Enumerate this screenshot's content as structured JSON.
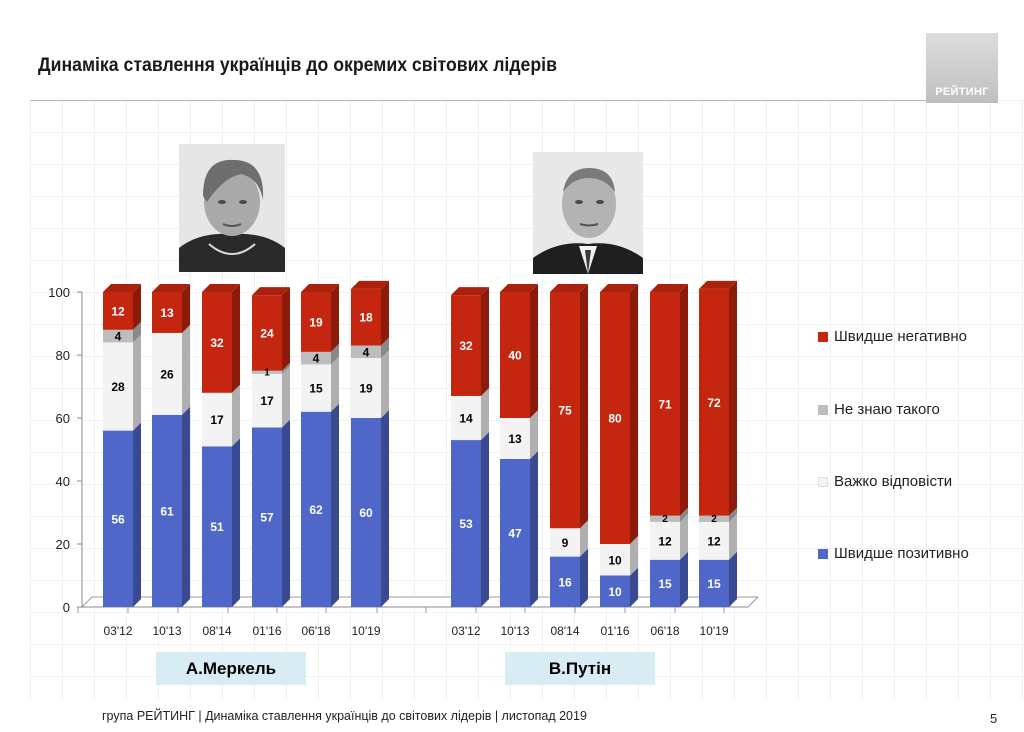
{
  "page": {
    "title": "Динаміка ставлення українців до окремих світових лідерів",
    "logo_text": "РЕЙТИНГ",
    "footer": "група РЕЙТИНГ | Динаміка ставлення українців до світових лідерів  | листопад 2019",
    "page_number": "5"
  },
  "colors": {
    "positive": "#4f67c8",
    "hard": "#f3f3f3",
    "dontknow": "#bdbdbd",
    "negative": "#c4260f",
    "label_bg": "#d7ecf3"
  },
  "chart_data": {
    "type": "bar",
    "stacked": true,
    "ylim": [
      0,
      100
    ],
    "yticks": [
      0,
      20,
      40,
      60,
      80,
      100
    ],
    "legend": [
      "Швидше негативно",
      "Не знаю такого",
      "Важко відповісти",
      "Швидше позитивно"
    ],
    "groups": [
      {
        "name": "А.Меркель",
        "categories": [
          "03'12",
          "10'13",
          "08'14",
          "01'16",
          "06'18",
          "10'19"
        ],
        "series": [
          {
            "name": "Швидше позитивно",
            "values": [
              56,
              61,
              51,
              57,
              62,
              60
            ]
          },
          {
            "name": "Важко відповісти",
            "values": [
              28,
              26,
              17,
              17,
              15,
              19
            ]
          },
          {
            "name": "Не знаю такого",
            "values": [
              4,
              null,
              null,
              1,
              4,
              4
            ]
          },
          {
            "name": "Швидше негативно",
            "values": [
              12,
              13,
              32,
              24,
              19,
              18
            ]
          }
        ]
      },
      {
        "name": "В.Путін",
        "categories": [
          "03'12",
          "10'13",
          "08'14",
          "01'16",
          "06'18",
          "10'19"
        ],
        "series": [
          {
            "name": "Швидше позитивно",
            "values": [
              53,
              47,
              16,
              10,
              15,
              15
            ]
          },
          {
            "name": "Важко відповісти",
            "values": [
              14,
              13,
              9,
              10,
              12,
              12
            ]
          },
          {
            "name": "Не знаю такого",
            "values": [
              null,
              null,
              null,
              null,
              2,
              2
            ]
          },
          {
            "name": "Швидше негативно",
            "values": [
              32,
              40,
              75,
              80,
              71,
              72
            ]
          }
        ]
      }
    ]
  }
}
